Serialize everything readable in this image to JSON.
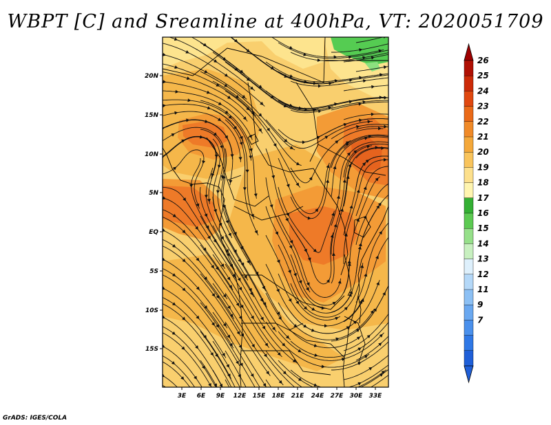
{
  "title": "WBPT [C] and Sreamline at 400hPa, VT: 2020051709",
  "credit": "GrADS: IGES/COLA",
  "map": {
    "variable": "Wet-bulb potential temperature",
    "units": "C",
    "level": "400hPa",
    "valid_time": "2020051709",
    "lon_labels": [
      "3E",
      "6E",
      "9E",
      "12E",
      "15E",
      "18E",
      "21E",
      "24E",
      "27E",
      "30E",
      "33E"
    ],
    "lat_labels": [
      "20N",
      "15N",
      "10N",
      "5N",
      "EQ",
      "5S",
      "10S",
      "15S"
    ]
  },
  "colorbar": {
    "labels": [
      "7",
      "9",
      "11",
      "12",
      "13",
      "14",
      "15",
      "16",
      "17",
      "18",
      "19",
      "20",
      "21",
      "22",
      "23",
      "24",
      "25",
      "26"
    ],
    "colors": [
      "#1f5fd8",
      "#2f78e6",
      "#4a90ec",
      "#6aa8f0",
      "#8cc0f4",
      "#b4d8f8",
      "#def0fc",
      "#c8f0c0",
      "#96e08a",
      "#5cca52",
      "#34b034",
      "#fff5b0",
      "#fde08c",
      "#f9c45c",
      "#f4a83a",
      "#f08a28",
      "#ea6a18",
      "#e04810",
      "#cc2a08",
      "#b01004"
    ],
    "arrow_bottom_color": "#1f5fd8",
    "arrow_top_color": "#a00000"
  },
  "fill_colors": {
    "c19": "#fde48e",
    "c20": "#f9cf6e",
    "c21": "#f5b74a",
    "c22": "#f39b36",
    "c23": "#ee7a28",
    "c24": "#e6631e",
    "green17": "#55cc52",
    "green16": "#8ce07f"
  }
}
